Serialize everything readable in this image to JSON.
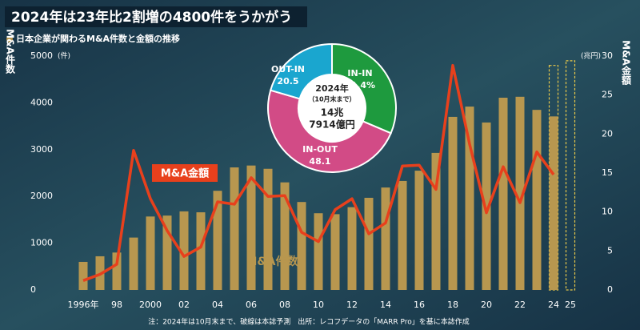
{
  "chart_data": {
    "type": "bar",
    "title": "2024年は23年比2割増の4800件をうかがう",
    "subtitle": "日本企業が関わるM&A件数と金額の推移",
    "y_label": "M&A件数",
    "y_unit": "(件)",
    "y2_label": "M&A金額",
    "y2_unit": "(兆円)",
    "note": "注：2024年は10月末まで、破線は本誌予測　出所：レコフデータの「MARR Pro」を基に本誌作成",
    "categories": [
      "1996年",
      null,
      "98",
      null,
      "2000",
      null,
      "02",
      null,
      "04",
      null,
      "06",
      null,
      "08",
      null,
      "10",
      null,
      "12",
      null,
      "14",
      null,
      "16",
      null,
      "18",
      null,
      "20",
      null,
      "22",
      null,
      "24",
      "25"
    ],
    "ylim": [
      0,
      5000
    ],
    "yticks": [
      0,
      1000,
      2000,
      3000,
      4000,
      5000
    ],
    "y2lim": [
      0,
      30
    ],
    "y2ticks": [
      0,
      5,
      10,
      15,
      20,
      25,
      30
    ],
    "series": [
      {
        "name": "M&A件数",
        "type": "bar",
        "color": "#b8974f",
        "values": [
          600,
          720,
          800,
          1120,
          1570,
          1590,
          1680,
          1660,
          2120,
          2620,
          2660,
          2590,
          2300,
          1880,
          1640,
          1620,
          1770,
          1970,
          2190,
          2330,
          2550,
          2930,
          3700,
          3920,
          3580,
          4110,
          4130,
          3850,
          3710,
          null
        ]
      },
      {
        "name": "M&A金額",
        "type": "line",
        "axis": "y2",
        "color": "#e8401c",
        "values": [
          1.2,
          2.0,
          3.3,
          17.9,
          11.7,
          7.6,
          4.3,
          5.5,
          11.3,
          11.0,
          14.4,
          12.0,
          12.1,
          7.4,
          6.2,
          10.3,
          11.7,
          7.2,
          8.6,
          15.9,
          16.0,
          12.9,
          28.8,
          18.7,
          9.9,
          15.8,
          11.2,
          17.7,
          14.8,
          null
        ]
      },
      {
        "type": "forecast",
        "color": "#e8c84a",
        "values": [
          null,
          null,
          null,
          null,
          null,
          null,
          null,
          null,
          null,
          null,
          null,
          null,
          null,
          null,
          null,
          null,
          null,
          null,
          null,
          null,
          null,
          null,
          null,
          null,
          null,
          null,
          null,
          null,
          4800,
          4900
        ]
      }
    ],
    "inset": {
      "type": "pie",
      "center_text": [
        "2024年",
        "（10月末まで）",
        "14兆",
        "7914億円"
      ],
      "categories": [
        "IN-IN",
        "IN-OUT",
        "OUT-IN"
      ],
      "values": [
        31.4,
        48.1,
        20.5
      ],
      "value_labels": [
        "31.4%",
        "48.1",
        "20.5"
      ],
      "colors": [
        "#1e9a3e",
        "#d24b86",
        "#1aa6cf"
      ]
    }
  }
}
